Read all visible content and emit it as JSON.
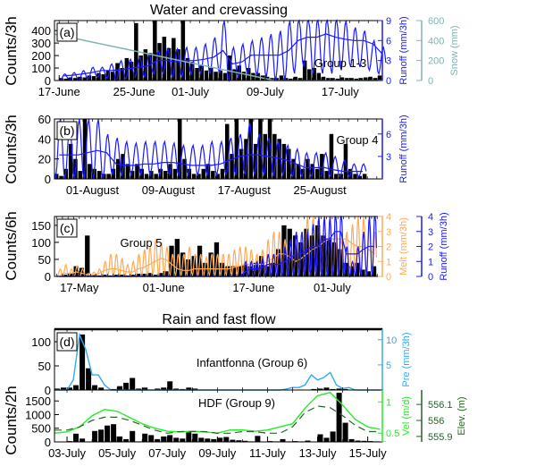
{
  "titles": {
    "top": "Water and crevassing",
    "bottom": "Rain and fast flow"
  },
  "colors": {
    "counts": "#000000",
    "runoff": "#1a1aff",
    "snow": "#80b3b3",
    "melt": "#ffaa55",
    "precip": "#33aaee",
    "velocity": "#22ee22",
    "elevation": "#226622"
  },
  "chart_data": [
    {
      "panel": "(a)",
      "type": "bar+line",
      "annotation": "Group 1-3",
      "xlim": [
        "16-June 12h",
        "21-July 12h"
      ],
      "xticks": [
        "17-June",
        "25-June",
        "01-July",
        "09-July",
        "17-July"
      ],
      "ylabel": "Counts/3h",
      "ylim": [
        0,
        480
      ],
      "yticks": [
        0,
        100,
        200,
        300,
        400
      ],
      "right_axes": [
        {
          "label": "Runoff (mm/3h)",
          "lim": [
            0,
            9
          ],
          "ticks": [
            0,
            3,
            6,
            9
          ],
          "color_key": "runoff"
        },
        {
          "label": "Snow (mm)",
          "lim": [
            0,
            600
          ],
          "ticks": [
            0,
            200,
            400,
            600
          ],
          "color_key": "snow"
        }
      ],
      "counts": {
        "start": "17-June",
        "step_days": 0.5,
        "values": [
          20,
          15,
          25,
          20,
          30,
          25,
          40,
          35,
          60,
          50,
          80,
          70,
          140,
          100,
          180,
          150,
          460,
          200,
          250,
          220,
          480,
          300,
          350,
          260,
          340,
          250,
          480,
          180,
          150,
          100,
          120,
          80,
          100,
          70,
          80,
          60,
          200,
          90,
          120,
          70,
          100,
          60,
          60,
          40,
          30,
          20,
          20,
          40,
          20,
          15,
          30,
          20,
          160,
          90,
          100,
          60,
          30,
          20,
          20,
          15,
          25,
          20,
          20,
          15,
          20,
          25,
          30,
          20,
          40,
          30
        ]
      },
      "runoff": {
        "start": "17-June",
        "step_days": 1,
        "daily_mean": [
          0.7,
          0.8,
          1,
          1.2,
          1.5,
          1.5,
          1.6,
          1.8,
          2,
          2.2,
          3,
          3,
          2.8,
          3,
          3,
          3.2,
          3.5,
          4.5,
          2.5,
          2.8,
          3.8,
          3.8,
          3.8,
          3.8,
          4.5,
          6,
          6.5,
          6.5,
          7,
          6.5,
          6.2,
          6,
          6,
          5.5,
          4
        ],
        "daily_max": [
          1,
          1.2,
          1.5,
          2,
          2,
          2.5,
          3,
          3.2,
          3.5,
          4,
          4.5,
          4.8,
          4.8,
          5,
          5,
          5.5,
          6.5,
          9,
          5,
          5.5,
          6,
          6.5,
          7,
          7.5,
          9,
          9.5,
          9.5,
          9.5,
          9.5,
          9.5,
          9,
          8,
          7.5,
          6,
          5
        ],
        "daily_min": [
          0,
          0,
          0,
          0.2,
          0.5,
          0.3,
          0,
          0.2,
          0.5,
          0.5,
          1,
          1,
          0.5,
          0.5,
          1,
          1,
          1,
          1,
          0,
          0.5,
          1,
          0.8,
          0.5,
          0,
          0,
          1,
          2,
          1,
          1,
          1,
          1.5,
          2,
          2,
          1.5,
          1
        ]
      },
      "snow": {
        "dates": [
          "16-June 12h",
          "10-July",
          "21-July 12h"
        ],
        "values": [
          465,
          0,
          0
        ]
      }
    },
    {
      "panel": "(b)",
      "type": "bar+line",
      "annotation": "Group 4",
      "xlim": [
        "28-July",
        "31-August 14h"
      ],
      "xticks": [
        "01-August",
        "09-August",
        "17-August",
        "25-August"
      ],
      "ylabel": "Counts/3h",
      "ylim": [
        0,
        60
      ],
      "yticks": [
        0,
        20,
        40,
        60
      ],
      "right_axes": [
        {
          "label": "Runoff (mm/3h)",
          "lim": [
            0,
            8
          ],
          "ticks": [
            3,
            6
          ],
          "color_key": "runoff"
        }
      ],
      "counts": {
        "start": "28-July",
        "step_days": 0.5,
        "values": [
          5,
          3,
          10,
          35,
          20,
          8,
          60,
          15,
          10,
          8,
          5,
          5,
          10,
          20,
          25,
          15,
          8,
          15,
          10,
          5,
          8,
          5,
          10,
          8,
          15,
          10,
          60,
          20,
          10,
          5,
          5,
          10,
          15,
          8,
          5,
          10,
          55,
          25,
          60,
          30,
          40,
          60,
          35,
          60,
          45,
          60,
          45,
          40,
          35,
          30,
          20,
          15,
          10,
          20,
          15,
          10,
          25,
          8,
          45,
          5,
          5,
          35,
          10,
          5,
          3,
          5
        ]
      },
      "runoff": {
        "start": "28-July",
        "step_days": 1,
        "daily_mean": [
          3.2,
          3.2,
          3.2,
          3.5,
          3.8,
          3.5,
          2,
          1.8,
          1.8,
          2,
          2,
          2.2,
          2.2,
          2,
          1.8,
          1.8,
          1.8,
          2,
          2.5,
          3,
          3.2,
          3.2,
          3,
          2.8,
          2.5,
          2,
          1.5,
          1.5,
          1.5,
          1.2,
          1,
          1,
          1
        ],
        "daily_max": [
          8,
          7,
          8,
          8,
          8,
          6,
          5.5,
          5,
          4.8,
          5,
          5,
          5,
          4.8,
          4.5,
          4.5,
          4.5,
          5,
          5,
          5.5,
          6,
          7.5,
          6,
          5.5,
          5,
          4.5,
          4,
          3.5,
          3.5,
          3.5,
          3,
          2.5,
          2,
          2
        ],
        "daily_min": [
          0,
          0,
          0,
          0,
          0,
          0,
          0.5,
          0.5,
          0.5,
          0.5,
          0.5,
          0.5,
          0.5,
          0.5,
          0.5,
          0.5,
          0.5,
          0.5,
          0.5,
          0.5,
          0.5,
          0.5,
          0.5,
          0.5,
          0.5,
          0.3,
          0.3,
          0.3,
          0.3,
          0.3,
          0.3,
          0.3,
          0.3
        ]
      }
    },
    {
      "panel": "(c)",
      "type": "bar+line",
      "annotation": "Group 5",
      "xlim": [
        "12-May 14h",
        "09-July 22h"
      ],
      "xticks": [
        "17-May",
        "01-June",
        "17-June",
        "01-July"
      ],
      "ylabel": "Counts/6h",
      "ylim": [
        0,
        176
      ],
      "yticks": [
        0,
        50,
        100,
        150
      ],
      "right_axes": [
        {
          "label": "Melt (mm/3h)",
          "lim": [
            0,
            4
          ],
          "ticks": [
            0,
            1,
            2,
            3,
            4
          ],
          "color_key": "melt"
        },
        {
          "label": "Runoff (mm/3h)",
          "lim": [
            0,
            4
          ],
          "ticks": [
            0,
            1,
            2,
            3,
            4
          ],
          "color_key": "runoff"
        }
      ],
      "counts": {
        "start": "13-May",
        "step_days": 1,
        "values": [
          0,
          5,
          10,
          30,
          25,
          120,
          5,
          3,
          5,
          3,
          5,
          5,
          3,
          5,
          8,
          8,
          10,
          5,
          10,
          15,
          90,
          110,
          70,
          50,
          60,
          90,
          40,
          70,
          100,
          40,
          30,
          30,
          30,
          35,
          30,
          40,
          60,
          30,
          40,
          80,
          150,
          140,
          120,
          100,
          140,
          120,
          150,
          120,
          110,
          100,
          80,
          40,
          30,
          40,
          20,
          15,
          30
        ]
      },
      "melt": {
        "start": "13-May",
        "step_days": 1,
        "daily_mean": [
          0.1,
          0.2,
          0.2,
          0.3,
          0.2,
          0.1,
          0.1,
          0.2,
          0.4,
          0.5,
          0.5,
          0.4,
          0.3,
          0.3,
          0.5,
          0.6,
          0.8,
          1,
          1.2,
          1.1,
          0.8,
          0.5,
          0.4,
          0.4,
          0.5,
          0.5,
          0.5,
          0.5,
          0.5,
          0.5,
          0.5,
          0.6,
          0.7,
          0.8,
          0.8,
          0.8,
          0.8,
          1,
          1.2,
          1.5,
          1.5,
          1.3,
          1,
          1.2,
          1.5,
          1.8,
          2,
          2.3,
          2.5,
          2.5,
          2.5,
          2.5,
          2.2,
          2,
          2,
          1.8,
          1.5
        ],
        "daily_max": [
          0.5,
          0.8,
          0.5,
          0.7,
          0.5,
          0.2,
          0.3,
          0.5,
          1,
          1.5,
          1.5,
          1.2,
          0.8,
          1,
          1.5,
          1.8,
          2,
          2.5,
          2.3,
          2,
          1.5,
          1.5,
          1.5,
          2,
          1.5,
          1.5,
          1.3,
          1.5,
          1.5,
          1.5,
          1.5,
          1.8,
          2,
          2,
          1.8,
          1.5,
          1.8,
          2.5,
          3,
          3,
          2.5,
          2,
          2.5,
          3,
          4,
          4,
          4,
          4,
          4,
          3,
          2.5,
          3,
          3.5,
          4,
          4,
          3.5,
          3
        ]
      },
      "runoff": {
        "start": "13-May",
        "step_days": 1,
        "daily_mean": [
          0,
          0,
          0,
          0,
          0,
          0,
          0,
          0,
          0,
          0,
          0,
          0,
          0,
          0,
          0,
          0,
          0,
          0,
          0,
          0,
          0,
          0,
          0,
          0,
          0,
          0,
          0,
          0,
          0,
          0,
          0,
          0,
          0,
          0.3,
          0.5,
          0.5,
          0.6,
          0.8,
          0.8,
          0.8,
          1,
          1.2,
          1.5,
          1.5,
          1.8,
          2,
          2,
          2.5,
          2.5,
          3,
          3,
          1.5,
          1.5,
          1.5,
          1.8,
          2,
          2
        ],
        "daily_max": [
          0,
          0,
          0,
          0,
          0,
          0,
          0,
          0,
          0,
          0,
          0,
          0,
          0,
          0,
          0,
          0,
          0,
          0,
          0,
          0,
          0,
          0,
          0,
          0,
          0,
          0,
          0,
          0,
          0,
          0,
          0,
          0,
          0,
          1,
          1,
          1,
          1.2,
          1.5,
          1.5,
          1.5,
          2,
          2.5,
          3,
          3,
          3,
          3.5,
          4,
          4,
          4,
          4.5,
          4.5,
          2,
          1,
          2,
          3,
          4,
          4.5
        ]
      }
    },
    {
      "panel": "(d)",
      "type": "bar+line",
      "annotation": "Infantfonna (Group 6)",
      "xlim": [
        "02-July 12h",
        "15-July 14h"
      ],
      "ylim": [
        0,
        126
      ],
      "yticks": [
        0,
        50,
        100
      ],
      "right_axes": [
        {
          "label": "Pre (mm/3h)",
          "lim": [
            0,
            12.1
          ],
          "ticks": [
            5,
            10
          ],
          "color_key": "precip"
        }
      ],
      "counts": {
        "start": "02-July 12h",
        "step_days": 0.25,
        "values": [
          3,
          5,
          5,
          10,
          115,
          45,
          10,
          5,
          0,
          2,
          8,
          15,
          25,
          3,
          5,
          0,
          3,
          5,
          18,
          3,
          2,
          5,
          3,
          0,
          1,
          0,
          0,
          0,
          0,
          0,
          0,
          0,
          0,
          0,
          0,
          1,
          0,
          1,
          0,
          0,
          0,
          2,
          3,
          5,
          2,
          3,
          2,
          0,
          1,
          1,
          0,
          0,
          0
        ]
      },
      "precip": {
        "start": "02-July 12h",
        "step_days": 0.25,
        "values": [
          0,
          0,
          0,
          2,
          11,
          8,
          3,
          3,
          1,
          0,
          0,
          0,
          0,
          0,
          0,
          0,
          0,
          0,
          0,
          0,
          0,
          0,
          0,
          0,
          0,
          0,
          0,
          0,
          0,
          0,
          0,
          0,
          0,
          0,
          0,
          0,
          0,
          0.2,
          0.5,
          0.5,
          1,
          3,
          2,
          2.5,
          3.5,
          1,
          0.3,
          0.5,
          0,
          0,
          0,
          0,
          0
        ]
      }
    },
    {
      "panel": "(d) lower",
      "type": "bar+line",
      "annotation": "HDF (Group 9)",
      "xlim": [
        "02-July 12h",
        "15-July 14h"
      ],
      "xticks": [
        "03-July",
        "05-July",
        "07-July",
        "09-July",
        "11-July",
        "13-July",
        "15-July"
      ],
      "ylabel": "Counts/2h",
      "ylim": [
        0,
        1900
      ],
      "yticks": [
        0,
        500,
        1000,
        1500
      ],
      "right_axes": [
        {
          "label": "Vel (m/d)",
          "lim": [
            0.36,
            1.19
          ],
          "ticks": [
            0.5,
            1.0
          ],
          "color_key": "velocity"
        },
        {
          "label": "Elev. (m)",
          "lim": [
            555.866,
            556.19
          ],
          "ticks": [
            555.9,
            556.0,
            556.1
          ],
          "color_key": "elevation"
        }
      ],
      "counts": {
        "start": "02-July 12h",
        "step_days": 0.25,
        "values": [
          5,
          10,
          30,
          300,
          120,
          5,
          400,
          450,
          600,
          650,
          200,
          100,
          400,
          20,
          300,
          250,
          100,
          200,
          250,
          150,
          120,
          350,
          300,
          150,
          120,
          100,
          150,
          180,
          80,
          60,
          40,
          20,
          220,
          10,
          30,
          20,
          100,
          20,
          30,
          20,
          50,
          10,
          280,
          150,
          380,
          1800,
          700,
          100,
          50,
          40,
          30,
          20,
          10
        ]
      },
      "velocity": {
        "start": "02-July 12h",
        "step_days": 0.5,
        "values": [
          0.5,
          0.52,
          0.6,
          0.78,
          0.88,
          0.85,
          0.75,
          0.65,
          0.58,
          0.53,
          0.52,
          0.53,
          0.52,
          0.5,
          0.55,
          0.55,
          0.53,
          0.55,
          0.6,
          0.65,
          0.9,
          1.1,
          1.15,
          0.95,
          0.72,
          0.6,
          0.56
        ]
      },
      "elevation": {
        "start": "02-July 12h",
        "step_days": 0.5,
        "values": [
          555.94,
          555.94,
          555.96,
          556.0,
          556.02,
          556.02,
          556.0,
          555.97,
          555.94,
          555.92,
          555.93,
          555.93,
          555.93,
          555.92,
          555.92,
          555.93,
          555.93,
          555.92,
          555.92,
          555.96,
          556.05,
          556.09,
          556.08,
          556.03,
          555.97,
          555.93,
          555.93
        ]
      }
    }
  ]
}
